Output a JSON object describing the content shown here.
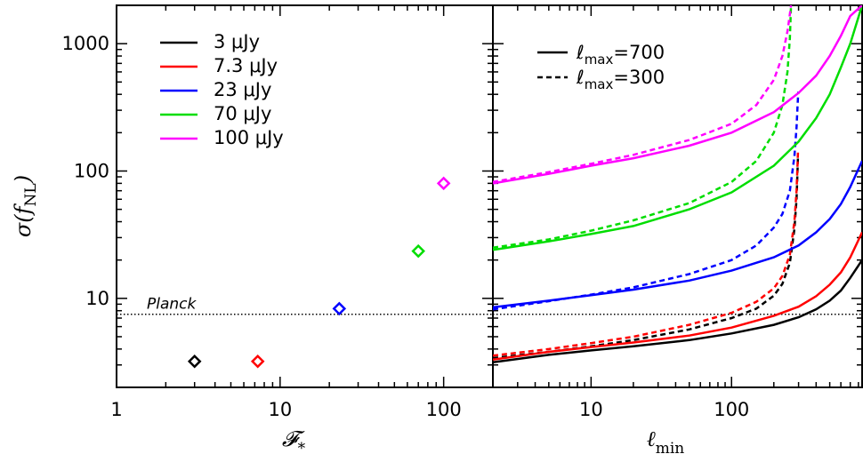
{
  "chart_data": [
    {
      "type": "scatter",
      "panel": "left",
      "xlabel": "𝓕",
      "xlabel_sub": "*",
      "ylabel": "σ(f",
      "ylabel_sub": "NL",
      "ylabel_close": ")",
      "xscale": "log",
      "yscale": "log",
      "xlim": [
        1,
        200
      ],
      "ylim": [
        2,
        2000
      ],
      "x_ticks": [
        1,
        10,
        100
      ],
      "x_tick_labels": [
        "1",
        "10",
        "100"
      ],
      "y_ticks": [
        10,
        100,
        1000
      ],
      "y_tick_labels": [
        "10",
        "100",
        "1000"
      ],
      "marker": "diamond",
      "points": [
        {
          "x": 3,
          "y": 3.2,
          "color": "#000000"
        },
        {
          "x": 7.3,
          "y": 3.2,
          "color": "#ff0000"
        },
        {
          "x": 23,
          "y": 8.3,
          "color": "#0000ff"
        },
        {
          "x": 70,
          "y": 23.5,
          "color": "#00dd00"
        },
        {
          "x": 100,
          "y": 80,
          "color": "#ff00ff"
        }
      ],
      "reference_line": {
        "y": 7.5,
        "label": "Planck",
        "style": "dotted"
      },
      "legend": {
        "placement": "top-left",
        "entries": [
          {
            "label": "3 μJy",
            "color": "#000000"
          },
          {
            "label": "7.3 μJy",
            "color": "#ff0000"
          },
          {
            "label": "23 μJy",
            "color": "#0000ff"
          },
          {
            "label": "70 μJy",
            "color": "#00dd00"
          },
          {
            "label": "100 μJy",
            "color": "#ff00ff"
          }
        ]
      }
    },
    {
      "type": "line",
      "panel": "right",
      "xlabel": "ℓ",
      "xlabel_sub": "min",
      "xscale": "log",
      "yscale": "log",
      "xlim": [
        2,
        850
      ],
      "ylim": [
        2,
        2000
      ],
      "x_ticks": [
        10,
        100
      ],
      "x_tick_labels": [
        "10",
        "100"
      ],
      "reference_line": {
        "y": 7.5,
        "style": "dotted"
      },
      "legend": {
        "placement": "top-left",
        "entries": [
          {
            "label": "ℓ",
            "sub": "max",
            "suffix": "=700",
            "style": "solid"
          },
          {
            "label": "ℓ",
            "sub": "max",
            "suffix": "=300",
            "style": "dashed"
          }
        ]
      },
      "series": [
        {
          "color": "#000000",
          "style": "solid",
          "x": [
            2,
            5,
            10,
            20,
            50,
            100,
            200,
            300,
            400,
            500,
            600,
            700,
            850
          ],
          "y": [
            3.15,
            3.6,
            3.9,
            4.2,
            4.7,
            5.3,
            6.2,
            7.1,
            8.2,
            9.6,
            11.5,
            14.5,
            20
          ]
        },
        {
          "color": "#000000",
          "style": "dashed",
          "x": [
            2,
            5,
            10,
            20,
            50,
            100,
            150,
            200,
            230,
            260,
            280,
            290,
            295,
            297
          ],
          "y": [
            3.4,
            3.8,
            4.2,
            4.7,
            5.7,
            7.0,
            8.3,
            10.5,
            13,
            19,
            35,
            60,
            100,
            130
          ]
        },
        {
          "color": "#ff0000",
          "style": "solid",
          "x": [
            2,
            5,
            10,
            20,
            50,
            100,
            200,
            300,
            400,
            500,
            600,
            700,
            850
          ],
          "y": [
            3.3,
            3.8,
            4.15,
            4.5,
            5.1,
            5.9,
            7.3,
            8.6,
            10.4,
            12.8,
            16,
            21,
            33
          ]
        },
        {
          "color": "#ff0000",
          "style": "dashed",
          "x": [
            2,
            5,
            10,
            20,
            50,
            100,
            150,
            200,
            230,
            260,
            280,
            290,
            295,
            297
          ],
          "y": [
            3.55,
            4.0,
            4.45,
            5.0,
            6.2,
            7.7,
            9.4,
            12,
            15,
            22,
            40,
            70,
            110,
            140
          ]
        },
        {
          "color": "#0000ff",
          "style": "solid",
          "x": [
            2,
            5,
            10,
            20,
            50,
            100,
            200,
            300,
            400,
            500,
            600,
            700,
            850
          ],
          "y": [
            8.5,
            9.6,
            10.6,
            11.7,
            13.8,
            16.5,
            21,
            26,
            33,
            42,
            55,
            75,
            120
          ]
        },
        {
          "color": "#0000ff",
          "style": "dashed",
          "x": [
            2,
            5,
            10,
            20,
            50,
            100,
            150,
            200,
            230,
            260,
            280,
            290,
            295,
            298,
            300
          ],
          "y": [
            8.2,
            9.5,
            10.7,
            12.2,
            15.5,
            20,
            26,
            36,
            46,
            70,
            130,
            220,
            320,
            400,
            420
          ]
        },
        {
          "color": "#00dd00",
          "style": "solid",
          "x": [
            2,
            5,
            10,
            20,
            50,
            100,
            200,
            300,
            400,
            500,
            600,
            700,
            850
          ],
          "y": [
            24,
            28,
            32,
            37,
            50,
            68,
            110,
            170,
            260,
            400,
            650,
            1000,
            2000
          ]
        },
        {
          "color": "#00dd00",
          "style": "dashed",
          "x": [
            2,
            5,
            10,
            20,
            50,
            100,
            150,
            200,
            230,
            250,
            260,
            265
          ],
          "y": [
            25,
            29,
            34,
            41,
            56,
            82,
            120,
            200,
            330,
            600,
            1100,
            2000
          ]
        },
        {
          "color": "#ff00ff",
          "style": "solid",
          "x": [
            2,
            5,
            10,
            20,
            50,
            100,
            200,
            300,
            400,
            500,
            600,
            700,
            850
          ],
          "y": [
            80,
            95,
            110,
            126,
            158,
            200,
            290,
            410,
            560,
            800,
            1150,
            1650,
            2000
          ]
        },
        {
          "color": "#ff00ff",
          "style": "dashed",
          "x": [
            2,
            5,
            10,
            20,
            50,
            100,
            150,
            200,
            230,
            250,
            260,
            265
          ],
          "y": [
            82,
            98,
            114,
            134,
            175,
            235,
            330,
            520,
            800,
            1250,
            1700,
            2000
          ]
        }
      ]
    }
  ]
}
